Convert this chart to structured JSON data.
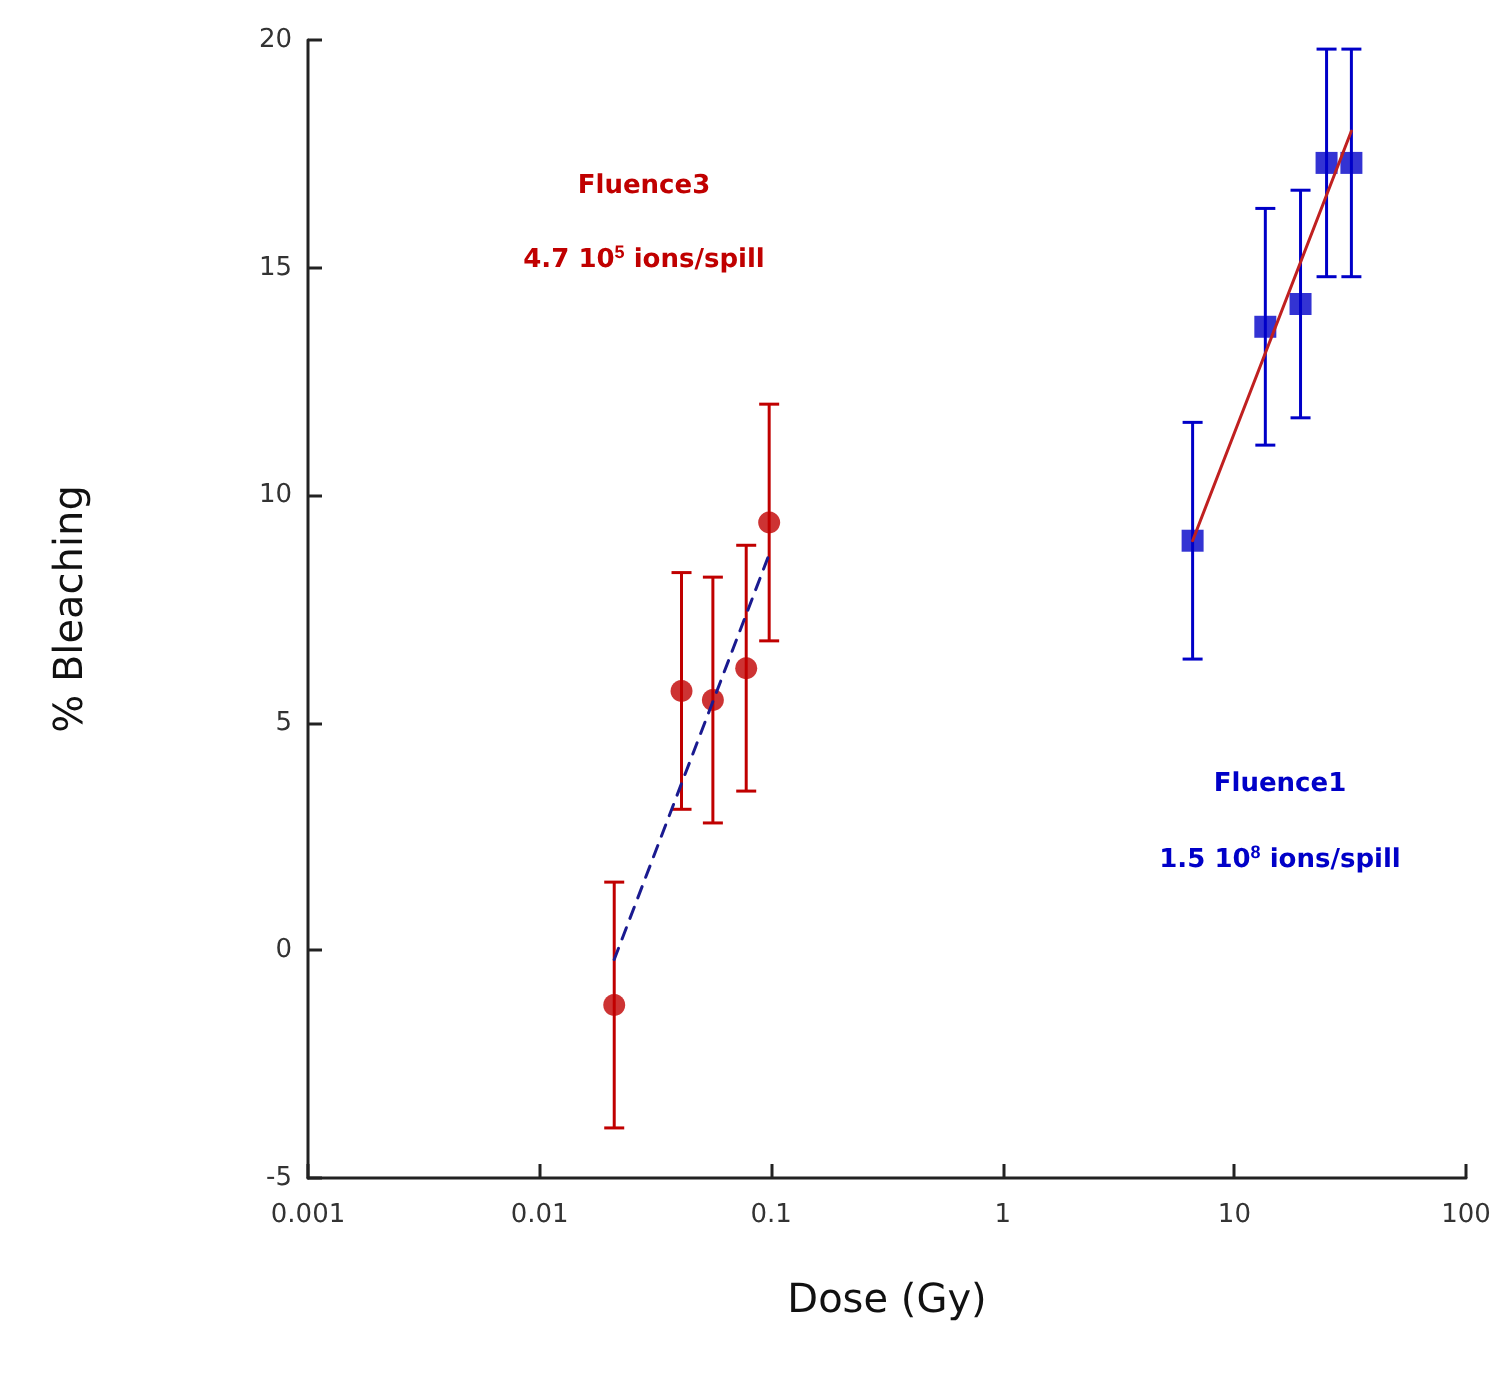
{
  "chart_data": {
    "type": "scatter",
    "xlabel": "Dose (Gy)",
    "ylabel": "% Bleaching",
    "log": "x",
    "xlim": [
      0.001,
      100
    ],
    "xticks": [
      0.001,
      0.01,
      0.1,
      1,
      10,
      100
    ],
    "ylim": [
      -5,
      20
    ],
    "yticks": [
      -5,
      0,
      5,
      10,
      15,
      20
    ],
    "series": [
      {
        "color": "#c00000",
        "marker": "circle",
        "x": [
          0.021,
          0.041,
          0.056,
          0.078,
          0.098
        ],
        "values": [
          -1.2,
          5.7,
          5.5,
          6.2,
          9.4
        ],
        "errors": [
          2.7,
          2.6,
          2.7,
          2.7,
          2.6
        ]
      },
      {
        "color": "#0000c8",
        "marker": "square",
        "x": [
          6.6,
          13.6,
          19.3,
          25,
          32
        ],
        "values": [
          9.0,
          13.7,
          14.2,
          17.3,
          17.3
        ],
        "errors": [
          2.6,
          2.6,
          2.5,
          2.5,
          2.5
        ]
      },
      {
        "type": "line",
        "color": "#1a1a90",
        "marker": "none",
        "line_style": "dashed",
        "x": [
          0.021,
          0.098
        ],
        "values": [
          -0.2,
          8.7
        ]
      },
      {
        "type": "line",
        "color": "#c02020",
        "marker": "none",
        "line_style": "solid",
        "x": [
          6.6,
          32
        ],
        "values": [
          9.0,
          18.0
        ]
      }
    ],
    "annotations": [
      "Fluence3",
      "4.7 10$^{5}$ ions/spill",
      "Fluence1",
      "1.5 10$^{8}$ ions/spill"
    ]
  }
}
